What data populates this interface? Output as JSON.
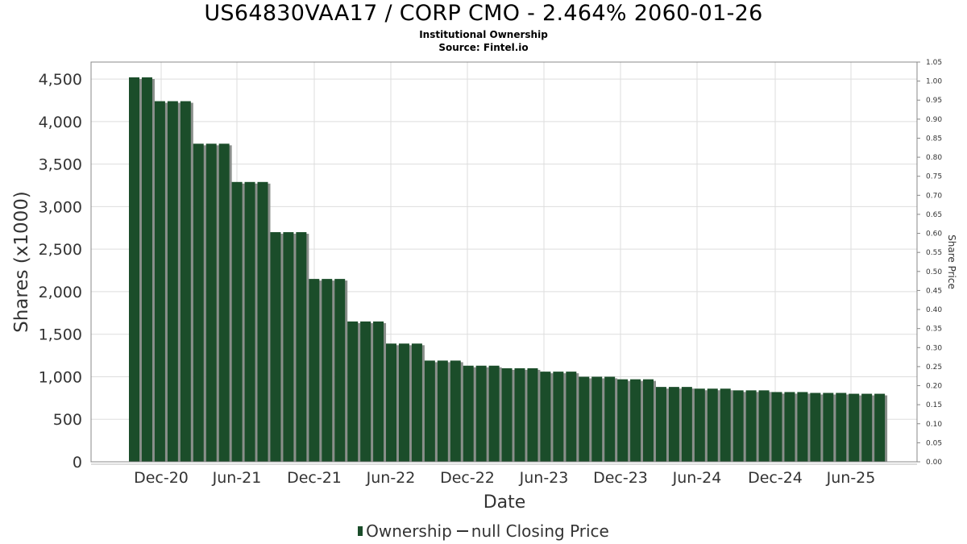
{
  "title": "US64830VAA17 / CORP CMO - 2.464% 2060-01-26",
  "subtitle": "Institutional Ownership",
  "source": "Source: Fintel.io",
  "legend": {
    "ownership": "Ownership",
    "price": "null Closing Price"
  },
  "colors": {
    "bar": "#1b4d2a",
    "bar_shadow": "#8a8f8b",
    "grid": "#dddddd",
    "frame": "#888888"
  },
  "chart_data": {
    "type": "bar",
    "xlabel": "Date",
    "ylabel": "Shares (x1000)",
    "y2label": "Share Price",
    "ylim": [
      0,
      4700
    ],
    "y2lim": [
      0,
      1.05
    ],
    "yticks": [
      0,
      500,
      1000,
      1500,
      2000,
      2500,
      3000,
      3500,
      4000,
      4500
    ],
    "ytick_labels": [
      "0",
      "500",
      "1,000",
      "1,500",
      "2,000",
      "2,500",
      "3,000",
      "3,500",
      "4,000",
      "4,500"
    ],
    "y2ticks": [
      "0.00",
      "0.05",
      "0.10",
      "0.15",
      "0.20",
      "0.25",
      "0.30",
      "0.35",
      "0.40",
      "0.45",
      "0.50",
      "0.55",
      "0.60",
      "0.65",
      "0.70",
      "0.75",
      "0.80",
      "0.85",
      "0.90",
      "0.95",
      "1.00",
      "1.05"
    ],
    "xtick_labels": [
      "Dec-20",
      "Jun-21",
      "Dec-21",
      "Jun-22",
      "Dec-22",
      "Jun-23",
      "Dec-23",
      "Jun-24",
      "Dec-24",
      "Jun-25"
    ],
    "grid": true,
    "legend_position": "bottom",
    "series": [
      {
        "name": "Ownership",
        "values": [
          4520,
          4520,
          4240,
          4240,
          4240,
          3740,
          3740,
          3740,
          3290,
          3290,
          3290,
          2700,
          2700,
          2700,
          2150,
          2150,
          2150,
          1650,
          1650,
          1650,
          1390,
          1390,
          1390,
          1190,
          1190,
          1190,
          1130,
          1130,
          1130,
          1100,
          1100,
          1100,
          1060,
          1060,
          1060,
          1000,
          1000,
          1000,
          970,
          970,
          970,
          880,
          880,
          880,
          860,
          860,
          860,
          840,
          840,
          840,
          820,
          820,
          820,
          810,
          810,
          810,
          800,
          800,
          800
        ]
      },
      {
        "name": "null Closing Price",
        "values": []
      }
    ]
  }
}
